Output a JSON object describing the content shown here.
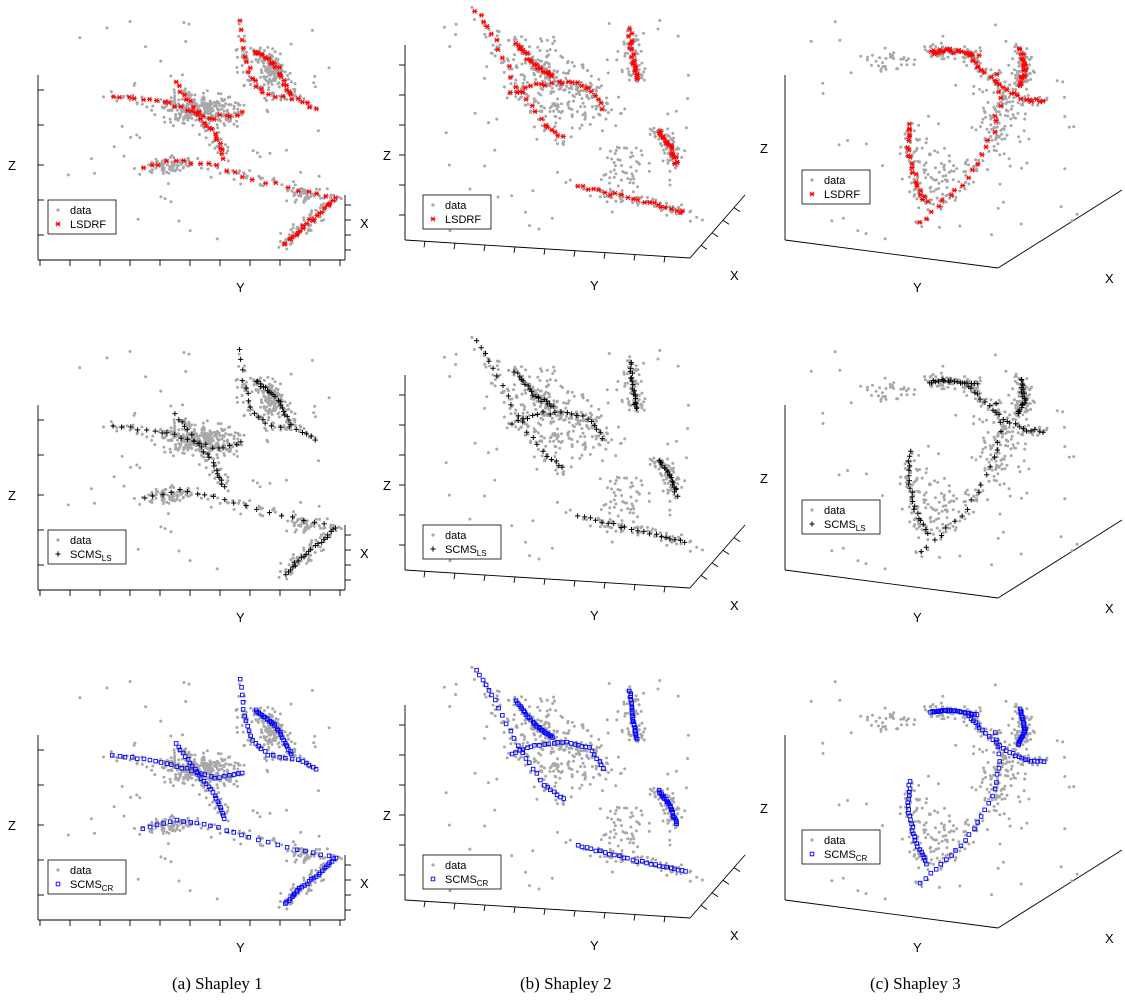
{
  "captions": {
    "a": "(a) Shapley 1",
    "b": "(b) Shapley 2",
    "c": "(c) Shapley 3"
  },
  "axis_labels": {
    "z": "Z",
    "y": "Y",
    "x": "X"
  },
  "legend": {
    "data": "data",
    "lsdrf": "LSDRF",
    "scms": "SCMS",
    "ls_sub": "LS",
    "cr_sub": "CR"
  },
  "colors": {
    "data": "#a8a8a8",
    "lsdrf": "#ff0000",
    "scms_ls": "#000000",
    "scms_cr": "#0000ff"
  },
  "chart_data": [
    {
      "type": "scatter",
      "panel": "a",
      "row": 1,
      "title": "",
      "xlabel": "Y",
      "ylabel": "Z",
      "zlabel": "X",
      "series": [
        {
          "name": "data"
        },
        {
          "name": "LSDRF",
          "marker": "asterisk"
        }
      ]
    },
    {
      "type": "scatter",
      "panel": "b",
      "row": 1,
      "title": "",
      "xlabel": "Y",
      "ylabel": "Z",
      "zlabel": "X",
      "series": [
        {
          "name": "data"
        },
        {
          "name": "LSDRF",
          "marker": "asterisk"
        }
      ]
    },
    {
      "type": "scatter",
      "panel": "c",
      "row": 1,
      "title": "",
      "xlabel": "Y",
      "ylabel": "Z",
      "zlabel": "X",
      "series": [
        {
          "name": "data"
        },
        {
          "name": "LSDRF",
          "marker": "asterisk"
        }
      ]
    },
    {
      "type": "scatter",
      "panel": "a",
      "row": 2,
      "title": "",
      "xlabel": "Y",
      "ylabel": "Z",
      "zlabel": "X",
      "series": [
        {
          "name": "data"
        },
        {
          "name": "SCMS_LS",
          "marker": "plus"
        }
      ]
    },
    {
      "type": "scatter",
      "panel": "b",
      "row": 2,
      "title": "",
      "xlabel": "Y",
      "ylabel": "Z",
      "zlabel": "X",
      "series": [
        {
          "name": "data"
        },
        {
          "name": "SCMS_LS",
          "marker": "plus"
        }
      ]
    },
    {
      "type": "scatter",
      "panel": "c",
      "row": 2,
      "title": "",
      "xlabel": "Y",
      "ylabel": "Z",
      "zlabel": "X",
      "series": [
        {
          "name": "data"
        },
        {
          "name": "SCMS_LS",
          "marker": "plus"
        }
      ]
    },
    {
      "type": "scatter",
      "panel": "a",
      "row": 3,
      "title": "",
      "xlabel": "Y",
      "ylabel": "Z",
      "zlabel": "X",
      "series": [
        {
          "name": "data"
        },
        {
          "name": "SCMS_CR",
          "marker": "square"
        }
      ]
    },
    {
      "type": "scatter",
      "panel": "b",
      "row": 3,
      "title": "",
      "xlabel": "Y",
      "ylabel": "Z",
      "zlabel": "X",
      "series": [
        {
          "name": "data"
        },
        {
          "name": "SCMS_CR",
          "marker": "square"
        }
      ]
    },
    {
      "type": "scatter",
      "panel": "c",
      "row": 3,
      "title": "",
      "xlabel": "Y",
      "ylabel": "Z",
      "zlabel": "X",
      "series": [
        {
          "name": "data"
        },
        {
          "name": "SCMS_CR",
          "marker": "square"
        }
      ]
    }
  ]
}
